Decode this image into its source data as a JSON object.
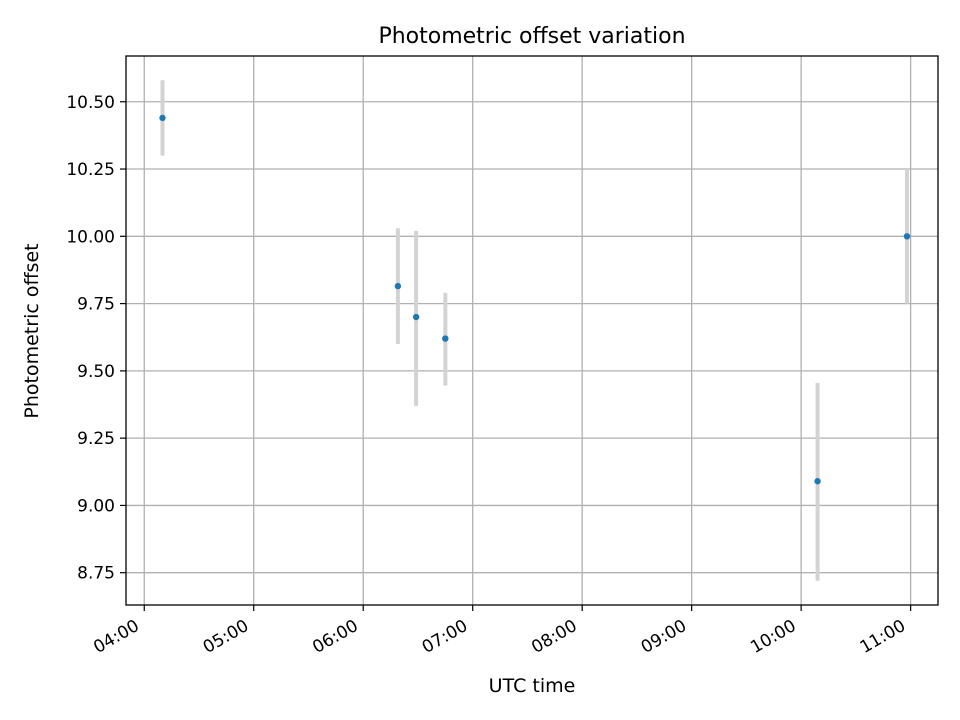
{
  "chart_data": {
    "type": "scatter",
    "title": "Photometric offset variation",
    "xlabel": "UTC time",
    "ylabel": "Photometric offset",
    "xlim": [
      "03:50",
      "11:15"
    ],
    "ylim": [
      8.63,
      10.67
    ],
    "x_ticks": [
      "04:00",
      "05:00",
      "06:00",
      "07:00",
      "08:00",
      "09:00",
      "10:00",
      "11:00"
    ],
    "y_ticks": [
      8.75,
      9.0,
      9.25,
      9.5,
      9.75,
      10.0,
      10.25,
      10.5
    ],
    "y_tick_labels": [
      "8.75",
      "9.00",
      "9.25",
      "9.50",
      "9.75",
      "10.00",
      "10.25",
      "10.50"
    ],
    "grid": true,
    "colors": {
      "marker": "#1f77b4",
      "errorbar": "#d3d3d3"
    },
    "points": [
      {
        "x": "04:10",
        "y": 10.44,
        "y_low": 10.3,
        "y_high": 10.58
      },
      {
        "x": "06:19",
        "y": 9.815,
        "y_low": 9.6,
        "y_high": 10.03
      },
      {
        "x": "06:29",
        "y": 9.7,
        "y_low": 9.37,
        "y_high": 10.02
      },
      {
        "x": "06:45",
        "y": 9.62,
        "y_low": 9.445,
        "y_high": 9.79
      },
      {
        "x": "10:09",
        "y": 9.09,
        "y_low": 8.72,
        "y_high": 9.455
      },
      {
        "x": "10:58",
        "y": 10.0,
        "y_low": 9.75,
        "y_high": 10.25
      }
    ]
  }
}
